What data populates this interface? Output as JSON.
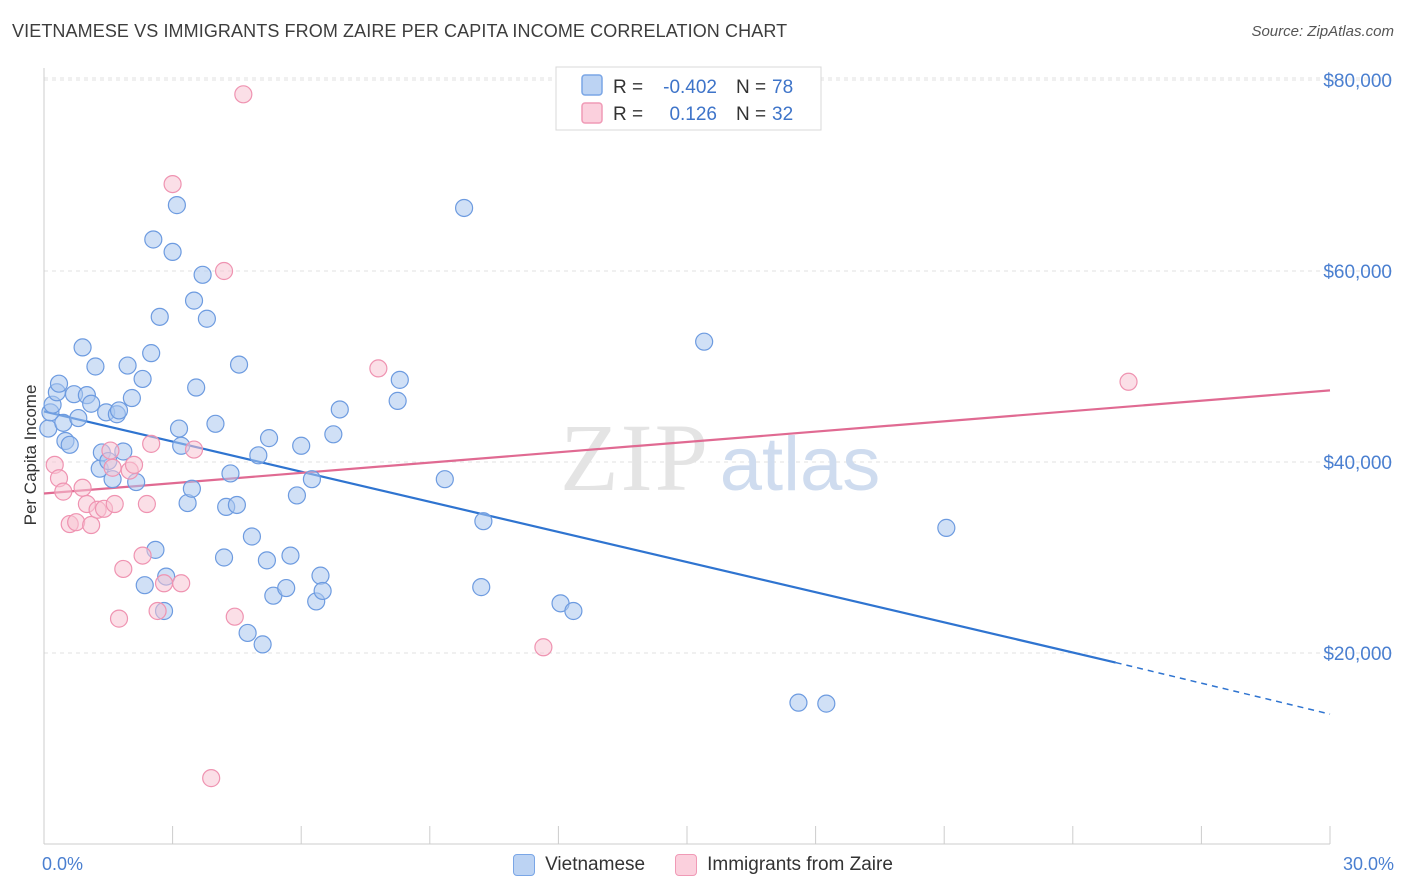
{
  "title": "VIETNAMESE VS IMMIGRANTS FROM ZAIRE PER CAPITA INCOME CORRELATION CHART",
  "source": "Source: ZipAtlas.com",
  "watermark": {
    "zip": "ZIP",
    "atlas": "atlas"
  },
  "colors": {
    "blue_fill": "#a9c6ef",
    "blue_stroke": "#6d9be0",
    "blue_line": "#2f74d0",
    "pink_fill": "#f8c4d4",
    "pink_stroke": "#ef93b1",
    "pink_line": "#e06a92",
    "tick_text": "#4a7fd0",
    "grid": "#e2e2e2"
  },
  "legend": {
    "rows": [
      {
        "r_label": "R =",
        "r_value": "-0.402",
        "n_label": "N =",
        "n_value": "78"
      },
      {
        "r_label": "R =",
        "r_value": "0.126",
        "n_label": "N =",
        "n_value": "32"
      }
    ]
  },
  "bottom_legend": {
    "vietnamese": "Vietnamese",
    "zaire": "Immigrants from Zaire"
  },
  "chart_data": {
    "type": "scatter",
    "title": "VIETNAMESE VS IMMIGRANTS FROM ZAIRE PER CAPITA INCOME CORRELATION CHART",
    "xlabel": "",
    "ylabel": "Per Capita Income",
    "xlim": [
      0,
      30
    ],
    "ylim": [
      0,
      80000
    ],
    "x_tick_labels": [
      "0.0%",
      "30.0%"
    ],
    "y_ticks": [
      20000,
      40000,
      60000,
      80000
    ],
    "y_tick_labels": [
      "$20,000",
      "$40,000",
      "$60,000",
      "$80,000"
    ],
    "grid": true,
    "legend_position": "top-center",
    "series": [
      {
        "name": "Vietnamese",
        "points": [
          [
            0.1,
            43500
          ],
          [
            0.15,
            45200
          ],
          [
            0.2,
            46000
          ],
          [
            0.3,
            47300
          ],
          [
            0.35,
            48200
          ],
          [
            0.45,
            44100
          ],
          [
            0.5,
            42200
          ],
          [
            0.6,
            41800
          ],
          [
            0.7,
            47100
          ],
          [
            0.8,
            44600
          ],
          [
            0.9,
            52000
          ],
          [
            1.0,
            47000
          ],
          [
            1.1,
            46100
          ],
          [
            1.2,
            50000
          ],
          [
            1.3,
            39300
          ],
          [
            1.35,
            41000
          ],
          [
            1.45,
            45200
          ],
          [
            1.5,
            40100
          ],
          [
            1.6,
            38200
          ],
          [
            1.7,
            45000
          ],
          [
            1.75,
            45400
          ],
          [
            1.85,
            41100
          ],
          [
            1.95,
            50100
          ],
          [
            2.05,
            46700
          ],
          [
            2.15,
            37900
          ],
          [
            2.3,
            48700
          ],
          [
            2.35,
            27100
          ],
          [
            2.5,
            51400
          ],
          [
            2.55,
            63300
          ],
          [
            2.6,
            30800
          ],
          [
            2.7,
            55200
          ],
          [
            2.8,
            24400
          ],
          [
            2.85,
            28000
          ],
          [
            3.0,
            62000
          ],
          [
            3.1,
            66900
          ],
          [
            3.15,
            43500
          ],
          [
            3.2,
            41700
          ],
          [
            3.35,
            35700
          ],
          [
            3.45,
            37200
          ],
          [
            3.55,
            47800
          ],
          [
            3.7,
            59600
          ],
          [
            3.8,
            55000
          ],
          [
            3.5,
            56900
          ],
          [
            4.0,
            44000
          ],
          [
            4.2,
            30000
          ],
          [
            4.25,
            35300
          ],
          [
            4.35,
            38800
          ],
          [
            4.5,
            35500
          ],
          [
            4.55,
            50200
          ],
          [
            4.75,
            22100
          ],
          [
            4.85,
            32200
          ],
          [
            5.0,
            40700
          ],
          [
            5.1,
            20900
          ],
          [
            5.2,
            29700
          ],
          [
            5.25,
            42500
          ],
          [
            5.35,
            26000
          ],
          [
            5.65,
            26800
          ],
          [
            5.75,
            30200
          ],
          [
            5.9,
            36500
          ],
          [
            6.0,
            41700
          ],
          [
            6.25,
            38200
          ],
          [
            6.35,
            25400
          ],
          [
            6.45,
            28100
          ],
          [
            6.5,
            26500
          ],
          [
            6.75,
            42900
          ],
          [
            6.9,
            45500
          ],
          [
            8.25,
            46400
          ],
          [
            8.3,
            48600
          ],
          [
            9.35,
            38200
          ],
          [
            9.8,
            66600
          ],
          [
            10.25,
            33800
          ],
          [
            10.2,
            26900
          ],
          [
            12.05,
            25200
          ],
          [
            12.35,
            24400
          ],
          [
            15.4,
            52600
          ],
          [
            17.6,
            14800
          ],
          [
            18.25,
            14700
          ],
          [
            21.05,
            33100
          ]
        ]
      },
      {
        "name": "Immigrants from Zaire",
        "points": [
          [
            0.25,
            39700
          ],
          [
            0.35,
            38300
          ],
          [
            0.45,
            36900
          ],
          [
            0.6,
            33500
          ],
          [
            0.75,
            33700
          ],
          [
            0.9,
            37300
          ],
          [
            1.0,
            35600
          ],
          [
            1.1,
            33400
          ],
          [
            1.25,
            35000
          ],
          [
            1.4,
            35100
          ],
          [
            1.55,
            41200
          ],
          [
            1.6,
            39400
          ],
          [
            1.65,
            35600
          ],
          [
            1.75,
            23600
          ],
          [
            1.85,
            28800
          ],
          [
            2.0,
            39100
          ],
          [
            2.1,
            39700
          ],
          [
            2.3,
            30200
          ],
          [
            2.4,
            35600
          ],
          [
            2.5,
            41900
          ],
          [
            2.65,
            24400
          ],
          [
            2.8,
            27300
          ],
          [
            3.0,
            69100
          ],
          [
            3.2,
            27300
          ],
          [
            3.5,
            41300
          ],
          [
            3.9,
            6900
          ],
          [
            4.2,
            60000
          ],
          [
            4.45,
            23800
          ],
          [
            4.65,
            78500
          ],
          [
            7.8,
            49800
          ],
          [
            11.65,
            20600
          ],
          [
            25.3,
            48400
          ]
        ]
      }
    ],
    "trend_lines": [
      {
        "name": "Vietnamese",
        "x0": 0.0,
        "y0": 45300,
        "x1": 25.0,
        "y1": 19000,
        "dashed_to_x": 30.0,
        "dashed_to_y": 13600
      },
      {
        "name": "Immigrants from Zaire",
        "x0": 0.0,
        "y0": 36700,
        "x1": 30.0,
        "y1": 47500
      }
    ],
    "legend_stats": [
      {
        "series": "Vietnamese",
        "R": -0.402,
        "N": 78
      },
      {
        "series": "Immigrants from Zaire",
        "R": 0.126,
        "N": 32
      }
    ]
  }
}
